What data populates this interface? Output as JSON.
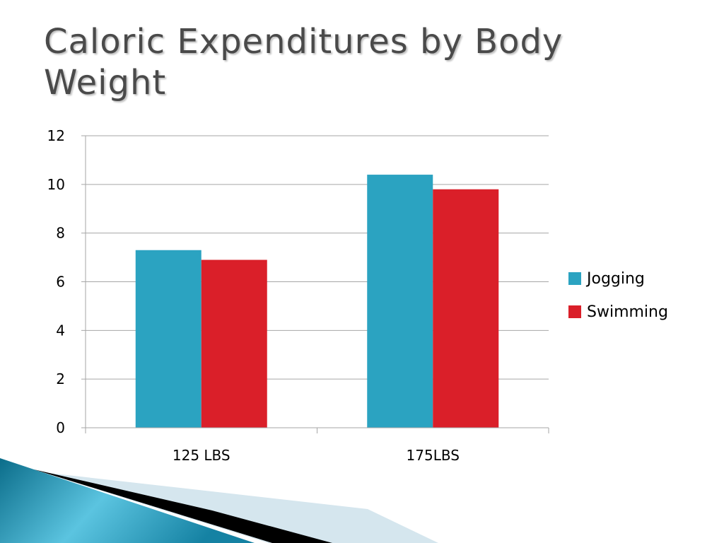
{
  "slide": {
    "title": "Caloric Expenditures by Body Weight"
  },
  "chart_data": {
    "type": "bar",
    "categories": [
      "125 LBS",
      "175LBS"
    ],
    "series": [
      {
        "name": "Jogging",
        "values": [
          7.3,
          10.4
        ],
        "color": "#2ba3c1"
      },
      {
        "name": "Swimming",
        "values": [
          6.9,
          9.8
        ],
        "color": "#da1f29"
      }
    ],
    "ylim": [
      0,
      12
    ],
    "yticks": [
      0,
      2,
      4,
      6,
      8,
      10,
      12
    ],
    "grid": true,
    "legend_position": "right"
  },
  "decoration": {
    "colors": [
      "#0b6d8a",
      "#5bc4e0",
      "#000000",
      "#d5e6ee"
    ]
  }
}
